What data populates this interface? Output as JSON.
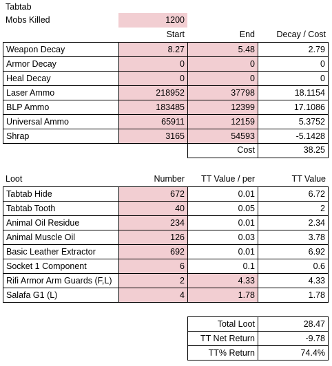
{
  "title": "Tabtab",
  "mobs_label": "Mobs Killed",
  "mobs_value": "1200",
  "decay_headers": {
    "start": "Start",
    "end": "End",
    "decay_cost": "Decay / Cost"
  },
  "decay_rows": [
    {
      "label": "Weapon Decay",
      "start": "8.27",
      "end": "5.48",
      "cost": "2.79"
    },
    {
      "label": "Armor Decay",
      "start": "0",
      "end": "0",
      "cost": "0"
    },
    {
      "label": "Heal Decay",
      "start": "0",
      "end": "0",
      "cost": "0"
    },
    {
      "label": "Laser Ammo",
      "start": "218952",
      "end": "37798",
      "cost": "18.1154"
    },
    {
      "label": "BLP Ammo",
      "start": "183485",
      "end": "12399",
      "cost": "17.1086"
    },
    {
      "label": "Universal Ammo",
      "start": "65911",
      "end": "12159",
      "cost": "5.3752"
    },
    {
      "label": "Shrap",
      "start": "3165",
      "end": "54593",
      "cost": "-5.1428"
    }
  ],
  "cost_label": "Cost",
  "cost_value": "38.25",
  "loot_headers": {
    "loot": "Loot",
    "number": "Number",
    "tt_per": "TT Value / per",
    "tt_value": "TT Value"
  },
  "loot_rows": [
    {
      "label": "Tabtab Hide",
      "number": "672",
      "per": "0.01",
      "value": "6.72"
    },
    {
      "label": "Tabtab Tooth",
      "number": "40",
      "per": "0.05",
      "value": "2"
    },
    {
      "label": "Animal Oil Residue",
      "number": "234",
      "per": "0.01",
      "value": "2.34"
    },
    {
      "label": "Animal Muscle Oil",
      "number": "126",
      "per": "0.03",
      "value": "3.78"
    },
    {
      "label": "Basic Leather Extractor",
      "number": "692",
      "per": "0.01",
      "value": "6.92"
    },
    {
      "label": "Socket 1 Component",
      "number": "6",
      "per": "0.1",
      "value": "0.6"
    },
    {
      "label": "Rifi Armor Arm Guards (F,L)",
      "number": "2",
      "per": "4.33",
      "value": "4.33"
    },
    {
      "label": "Salafa G1 (L)",
      "number": "4",
      "per": "1.78",
      "value": "1.78"
    }
  ],
  "summary": [
    {
      "label": "Total Loot",
      "value": "28.47"
    },
    {
      "label": "TT Net Return",
      "value": "-9.78"
    },
    {
      "label": "TT% Return",
      "value": "74.4%"
    }
  ],
  "colors": {
    "input_fill": "#f2ced2",
    "border": "#000000"
  }
}
